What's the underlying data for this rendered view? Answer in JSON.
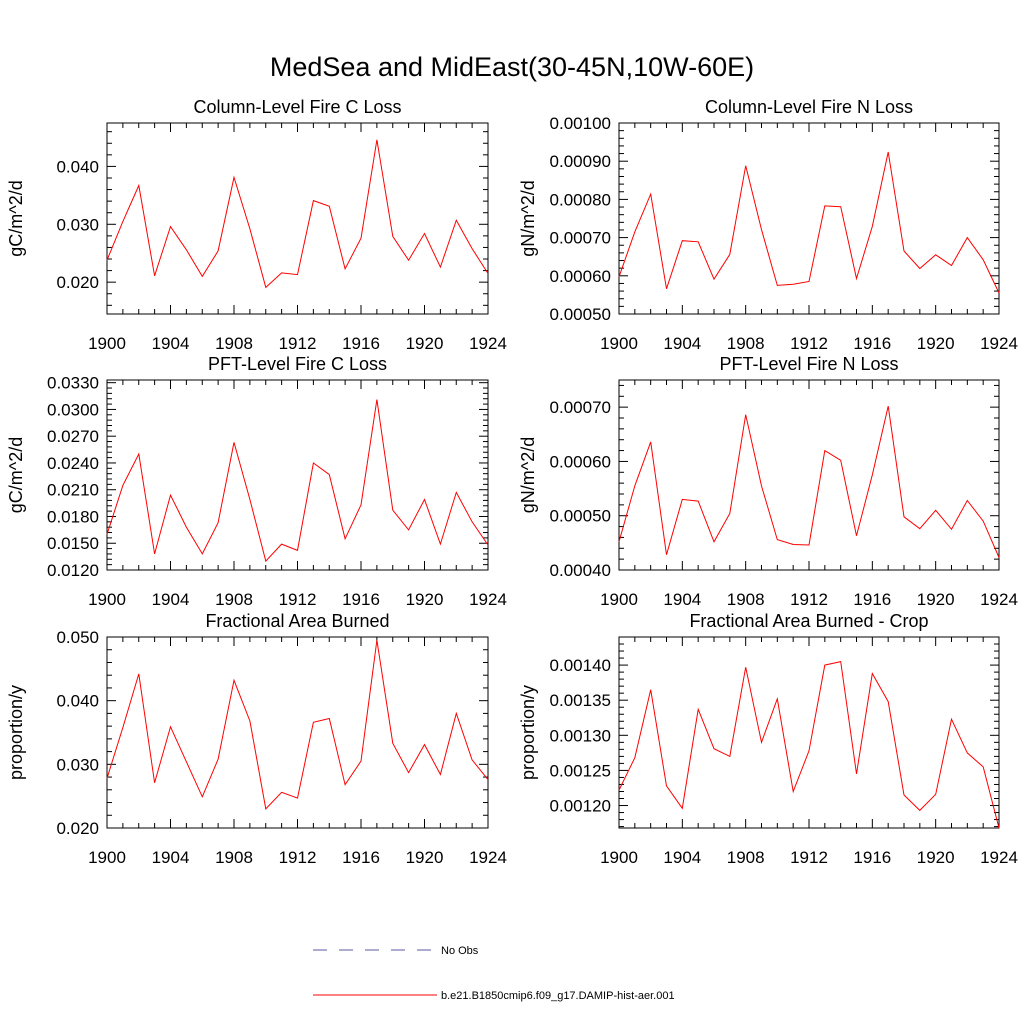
{
  "figure_title": "MedSea and MidEast(30-45N,10W-60E)",
  "colors": {
    "model_line": "#ff0000",
    "obs_line": "#5a5aa0",
    "axis": "#000000"
  },
  "legend": {
    "entries": [
      {
        "label": "No Obs",
        "style": "dashed",
        "color": "#5a5aa0"
      },
      {
        "label": "b.e21.B1850cmip6.f09_g17.DAMIP-hist-aer.001",
        "style": "solid",
        "color": "#ff0000"
      }
    ]
  },
  "chart_data": [
    {
      "type": "line",
      "title": "Column-Level Fire C Loss",
      "ylabel": "gC/m^2/d",
      "xlim": [
        1900,
        1924
      ],
      "xticks": [
        1900,
        1904,
        1908,
        1912,
        1916,
        1920,
        1924
      ],
      "ylim": [
        0.0145,
        0.0475
      ],
      "yticks": [
        0.02,
        0.03,
        0.04
      ],
      "ytick_labels": [
        "0.020",
        "0.030",
        "0.040"
      ],
      "x": [
        1900,
        1901,
        1902,
        1903,
        1904,
        1905,
        1906,
        1907,
        1908,
        1909,
        1910,
        1911,
        1912,
        1913,
        1914,
        1915,
        1916,
        1917,
        1918,
        1919,
        1920,
        1921,
        1922,
        1923,
        1924
      ],
      "series": [
        {
          "name": "b.e21.B1850cmip6.f09_g17.DAMIP-hist-aer.001",
          "values": [
            0.0238,
            0.0305,
            0.0367,
            0.0211,
            0.0296,
            0.0256,
            0.021,
            0.0254,
            0.0381,
            0.0292,
            0.0191,
            0.0216,
            0.0213,
            0.0341,
            0.0331,
            0.0223,
            0.0276,
            0.0446,
            0.0279,
            0.0238,
            0.0284,
            0.0226,
            0.0307,
            0.0258,
            0.0215
          ]
        }
      ]
    },
    {
      "type": "line",
      "title": "Column-Level Fire N Loss",
      "ylabel": "gN/m^2/d",
      "xlim": [
        1900,
        1924
      ],
      "xticks": [
        1900,
        1904,
        1908,
        1912,
        1916,
        1920,
        1924
      ],
      "ylim": [
        0.0005,
        0.001
      ],
      "yticks": [
        0.0005,
        0.0006,
        0.0007,
        0.0008,
        0.0009,
        0.001
      ],
      "ytick_labels": [
        "0.00050",
        "0.00060",
        "0.00070",
        "0.00080",
        "0.00090",
        "0.00100"
      ],
      "x": [
        1900,
        1901,
        1902,
        1903,
        1904,
        1905,
        1906,
        1907,
        1908,
        1909,
        1910,
        1911,
        1912,
        1913,
        1914,
        1915,
        1916,
        1917,
        1918,
        1919,
        1920,
        1921,
        1922,
        1923,
        1924
      ],
      "series": [
        {
          "name": "b.e21.B1850cmip6.f09_g17.DAMIP-hist-aer.001",
          "values": [
            0.000597,
            0.000715,
            0.000814,
            0.000566,
            0.000692,
            0.000689,
            0.000591,
            0.000656,
            0.000888,
            0.000721,
            0.000575,
            0.000578,
            0.000585,
            0.000783,
            0.000781,
            0.000593,
            0.000729,
            0.000924,
            0.000665,
            0.000619,
            0.000655,
            0.000627,
            0.0007,
            0.000642,
            0.000555
          ]
        }
      ]
    },
    {
      "type": "line",
      "title": "PFT-Level Fire C Loss",
      "ylabel": "gC/m^2/d",
      "xlim": [
        1900,
        1924
      ],
      "xticks": [
        1900,
        1904,
        1908,
        1912,
        1916,
        1920,
        1924
      ],
      "ylim": [
        0.012,
        0.0333
      ],
      "yticks": [
        0.012,
        0.015,
        0.018,
        0.021,
        0.024,
        0.027,
        0.03,
        0.033
      ],
      "ytick_labels": [
        "0.0120",
        "0.0150",
        "0.0180",
        "0.0210",
        "0.0240",
        "0.0270",
        "0.0300",
        "0.0330"
      ],
      "x": [
        1900,
        1901,
        1902,
        1903,
        1904,
        1905,
        1906,
        1907,
        1908,
        1909,
        1910,
        1911,
        1912,
        1913,
        1914,
        1915,
        1916,
        1917,
        1918,
        1919,
        1920,
        1921,
        1922,
        1923,
        1924
      ],
      "series": [
        {
          "name": "b.e21.B1850cmip6.f09_g17.DAMIP-hist-aer.001",
          "values": [
            0.016,
            0.0215,
            0.025,
            0.0138,
            0.0204,
            0.0168,
            0.0138,
            0.0173,
            0.0263,
            0.0199,
            0.013,
            0.0149,
            0.0142,
            0.024,
            0.0227,
            0.0155,
            0.0193,
            0.0311,
            0.0187,
            0.0165,
            0.0199,
            0.0149,
            0.0207,
            0.0174,
            0.0148
          ]
        }
      ]
    },
    {
      "type": "line",
      "title": "PFT-Level Fire N Loss",
      "ylabel": "gN/m^2/d",
      "xlim": [
        1900,
        1924
      ],
      "xticks": [
        1900,
        1904,
        1908,
        1912,
        1916,
        1920,
        1924
      ],
      "ylim": [
        0.0004,
        0.00075
      ],
      "yticks": [
        0.0004,
        0.0005,
        0.0006,
        0.0007
      ],
      "ytick_labels": [
        "0.00040",
        "0.00050",
        "0.00060",
        "0.00070"
      ],
      "x": [
        1900,
        1901,
        1902,
        1903,
        1904,
        1905,
        1906,
        1907,
        1908,
        1909,
        1910,
        1911,
        1912,
        1913,
        1914,
        1915,
        1916,
        1917,
        1918,
        1919,
        1920,
        1921,
        1922,
        1923,
        1924
      ],
      "series": [
        {
          "name": "b.e21.B1850cmip6.f09_g17.DAMIP-hist-aer.001",
          "values": [
            0.000452,
            0.000555,
            0.000636,
            0.000428,
            0.00053,
            0.000527,
            0.000452,
            0.000504,
            0.000686,
            0.000555,
            0.000456,
            0.000447,
            0.000446,
            0.00062,
            0.000602,
            0.000463,
            0.000575,
            0.000702,
            0.000498,
            0.000476,
            0.00051,
            0.000475,
            0.000528,
            0.00049,
            0.000423
          ]
        }
      ]
    },
    {
      "type": "line",
      "title": "Fractional Area Burned",
      "ylabel": "proportion/y",
      "xlim": [
        1900,
        1924
      ],
      "xticks": [
        1900,
        1904,
        1908,
        1912,
        1916,
        1920,
        1924
      ],
      "ylim": [
        0.02,
        0.05
      ],
      "yticks": [
        0.02,
        0.03,
        0.04,
        0.05
      ],
      "ytick_labels": [
        "0.020",
        "0.030",
        "0.040",
        "0.050"
      ],
      "x": [
        1900,
        1901,
        1902,
        1903,
        1904,
        1905,
        1906,
        1907,
        1908,
        1909,
        1910,
        1911,
        1912,
        1913,
        1914,
        1915,
        1916,
        1917,
        1918,
        1919,
        1920,
        1921,
        1922,
        1923,
        1924
      ],
      "series": [
        {
          "name": "b.e21.B1850cmip6.f09_g17.DAMIP-hist-aer.001",
          "values": [
            0.0278,
            0.0358,
            0.0442,
            0.0271,
            0.0359,
            0.0304,
            0.0249,
            0.0308,
            0.0432,
            0.0368,
            0.023,
            0.0256,
            0.0247,
            0.0366,
            0.0372,
            0.0268,
            0.0305,
            0.0495,
            0.0333,
            0.0287,
            0.0331,
            0.0284,
            0.038,
            0.0307,
            0.0276
          ]
        }
      ]
    },
    {
      "type": "line",
      "title": "Fractional Area Burned - Crop",
      "ylabel": "proportion/y",
      "xlim": [
        1900,
        1924
      ],
      "xticks": [
        1900,
        1904,
        1908,
        1912,
        1916,
        1920,
        1924
      ],
      "ylim": [
        0.001168,
        0.00144
      ],
      "yticks": [
        0.0012,
        0.00125,
        0.0013,
        0.00135,
        0.0014
      ],
      "ytick_labels": [
        "0.00120",
        "0.00125",
        "0.00130",
        "0.00135",
        "0.00140"
      ],
      "x": [
        1900,
        1901,
        1902,
        1903,
        1904,
        1905,
        1906,
        1907,
        1908,
        1909,
        1910,
        1911,
        1912,
        1913,
        1914,
        1915,
        1916,
        1917,
        1918,
        1919,
        1920,
        1921,
        1922,
        1923,
        1924
      ],
      "series": [
        {
          "name": "b.e21.B1850cmip6.f09_g17.DAMIP-hist-aer.001",
          "values": [
            0.001222,
            0.001268,
            0.001365,
            0.001228,
            0.001196,
            0.001337,
            0.001281,
            0.00127,
            0.001397,
            0.00129,
            0.001352,
            0.00122,
            0.001278,
            0.0014,
            0.001405,
            0.001245,
            0.001388,
            0.001348,
            0.001215,
            0.001193,
            0.001216,
            0.001323,
            0.001275,
            0.001255,
            0.001168
          ]
        }
      ]
    }
  ]
}
